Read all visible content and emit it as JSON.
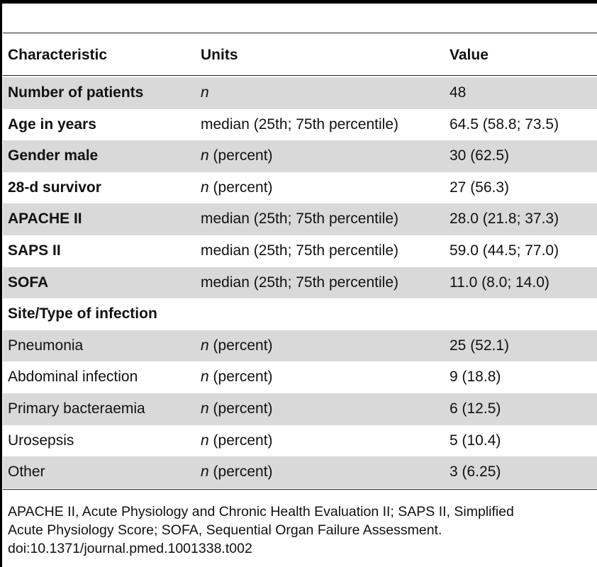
{
  "table": {
    "columns": [
      "Characteristic",
      "Units",
      "Value"
    ],
    "rows": [
      {
        "characteristic": "Number of patients",
        "units_italic": "n",
        "units_rest": "",
        "value": "48",
        "bold": true,
        "shaded": true
      },
      {
        "characteristic": "Age in years",
        "units_italic": "",
        "units_rest": "median (25th; 75th percentile)",
        "value": "64.5 (58.8; 73.5)",
        "bold": true,
        "shaded": false
      },
      {
        "characteristic": "Gender male",
        "units_italic": "n",
        "units_rest": " (percent)",
        "value": "30 (62.5)",
        "bold": true,
        "shaded": true
      },
      {
        "characteristic": "28-d survivor",
        "units_italic": "n",
        "units_rest": " (percent)",
        "value": "27 (56.3)",
        "bold": true,
        "shaded": false
      },
      {
        "characteristic": "APACHE II",
        "units_italic": "",
        "units_rest": "median (25th; 75th percentile)",
        "value": "28.0 (21.8; 37.3)",
        "bold": true,
        "shaded": true
      },
      {
        "characteristic": "SAPS II",
        "units_italic": "",
        "units_rest": "median (25th; 75th percentile)",
        "value": "59.0 (44.5; 77.0)",
        "bold": true,
        "shaded": false
      },
      {
        "characteristic": "SOFA",
        "units_italic": "",
        "units_rest": "median (25th; 75th percentile)",
        "value": "11.0 (8.0; 14.0)",
        "bold": true,
        "shaded": true
      },
      {
        "characteristic": "Site/Type of infection",
        "units_italic": "",
        "units_rest": "",
        "value": "",
        "bold": true,
        "shaded": false
      },
      {
        "characteristic": "Pneumonia",
        "units_italic": "n",
        "units_rest": " (percent)",
        "value": "25 (52.1)",
        "bold": false,
        "shaded": true
      },
      {
        "characteristic": "Abdominal infection",
        "units_italic": "n",
        "units_rest": " (percent)",
        "value": "9 (18.8)",
        "bold": false,
        "shaded": false
      },
      {
        "characteristic": "Primary bacteraemia",
        "units_italic": "n",
        "units_rest": " (percent)",
        "value": "6 (12.5)",
        "bold": false,
        "shaded": true
      },
      {
        "characteristic": "Urosepsis",
        "units_italic": "n",
        "units_rest": " (percent)",
        "value": "5 (10.4)",
        "bold": false,
        "shaded": false
      },
      {
        "characteristic": "Other",
        "units_italic": "n",
        "units_rest": " (percent)",
        "value": "3 (6.25)",
        "bold": false,
        "shaded": true
      }
    ]
  },
  "footnote": {
    "lines": [
      "APACHE II, Acute Physiology and Chronic Health Evaluation II; SAPS II, Simplified",
      "Acute Physiology Score; SOFA, Sequential Organ Failure Assessment."
    ],
    "doi": "doi:10.1371/journal.pmed.1001338.t002"
  },
  "colors": {
    "shade": "#d9d9d9",
    "rule": "#000000",
    "text": "#111111"
  }
}
